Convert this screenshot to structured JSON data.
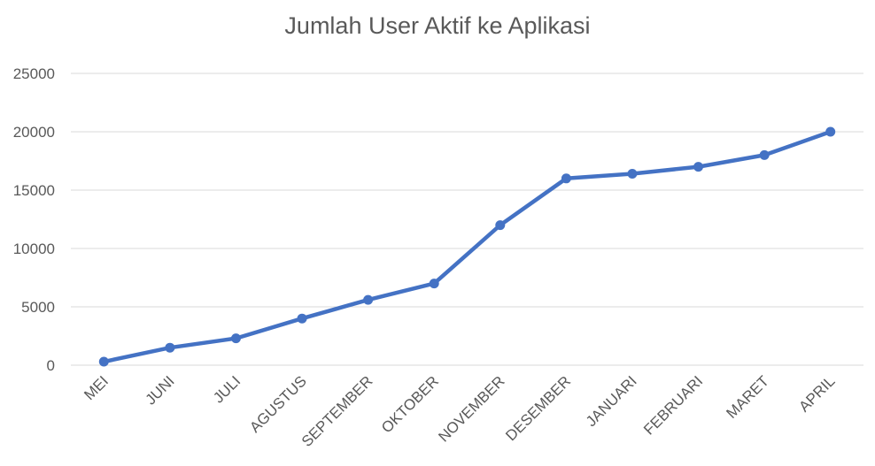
{
  "chart_data": {
    "type": "line",
    "title": "Jumlah User Aktif ke Aplikasi",
    "categories": [
      "MEI",
      "JUNI",
      "JULI",
      "AGUSTUS",
      "SEPTEMBER",
      "OKTOBER",
      "NOVEMBER",
      "DESEMBER",
      "JANUARI",
      "FEBRUARI",
      "MARET",
      "APRIL"
    ],
    "series": [
      {
        "values": [
          300,
          1500,
          2300,
          4000,
          5600,
          7000,
          12000,
          16000,
          16400,
          17000,
          18000,
          20000
        ],
        "color": "#4472c4"
      }
    ],
    "yticks": [
      "0",
      "5000",
      "10000",
      "15000",
      "20000",
      "25000"
    ],
    "ylim": [
      0,
      25000
    ],
    "xlabel": "",
    "ylabel": "",
    "grid": true,
    "legend": "none"
  }
}
